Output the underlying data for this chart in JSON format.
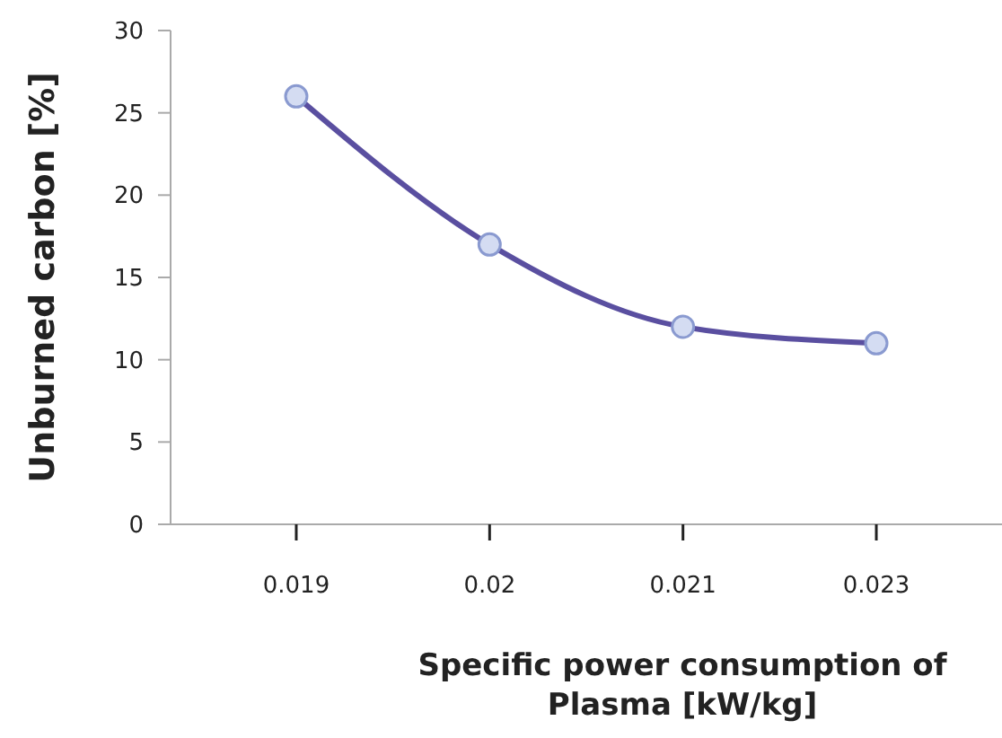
{
  "chart_data": {
    "type": "line",
    "xlabel": "Specific power consumption of Plasma [kW/kg]",
    "ylabel": "Unburned carbon [%]",
    "categories": [
      "0.019",
      "0.02",
      "0.021",
      "0.023"
    ],
    "series": [
      {
        "color": "#5a4fa0",
        "values": [
          26,
          17,
          12,
          11
        ]
      }
    ],
    "ylim": [
      0,
      30
    ],
    "yticks": [
      0,
      5,
      10,
      15,
      20,
      25,
      30
    ],
    "marker": "circle",
    "grid": false
  }
}
